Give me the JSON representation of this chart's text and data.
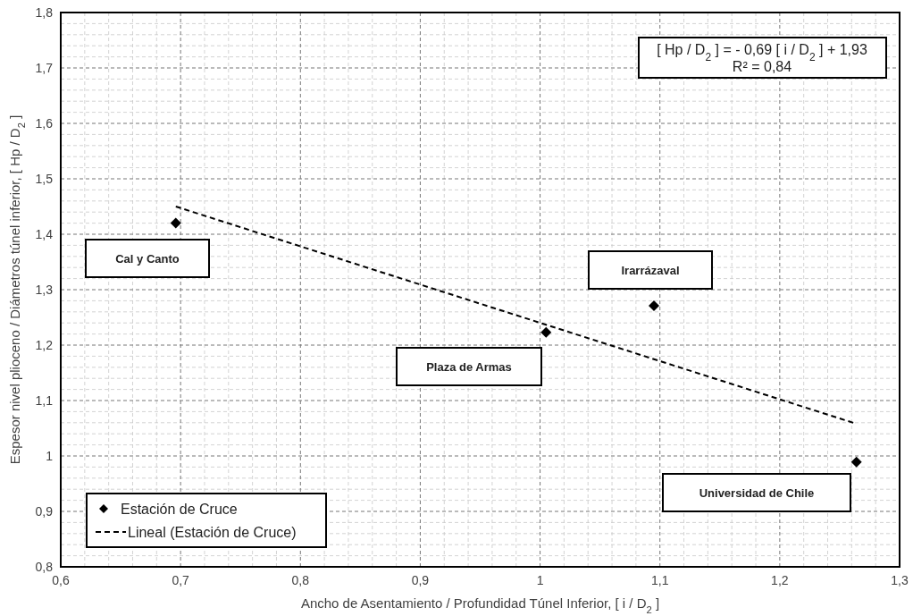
{
  "chart_data": {
    "type": "scatter",
    "xlabel": "Ancho de Asentamiento / Profundidad Túnel Inferior, [ i / D$_{2}$ ]",
    "ylabel": "Espesor nivel plioceno / Diámetros túnel inferior, [ Hp / D$_{2}$ ]",
    "x": [
      0.696,
      1.005,
      1.095,
      1.264
    ],
    "series": [
      {
        "name": "Estación de Cruce",
        "color": "#000000",
        "marker": "diamond",
        "values": [
          1.42,
          1.223,
          1.271,
          0.989
        ]
      },
      {
        "name": "Lineal (Estación de Cruce)",
        "type": "line",
        "color": "#000000",
        "line_style": "dashed",
        "marker": "none",
        "x": [
          0.696,
          1.264
        ],
        "values": [
          1.45,
          1.058
        ]
      }
    ],
    "xlim": [
      0.6,
      1.3
    ],
    "xticks": [
      {
        "value": 0.6,
        "label": "0,6"
      },
      {
        "value": 0.7,
        "label": "0,7"
      },
      {
        "value": 0.8,
        "label": "0,8"
      },
      {
        "value": 0.9,
        "label": "0,9"
      },
      1,
      {
        "value": 1.1,
        "label": "1,1"
      },
      {
        "value": 1.2,
        "label": "1,2"
      },
      {
        "value": 1.3,
        "label": "1,3"
      }
    ],
    "ylim": [
      0.8,
      1.8
    ],
    "yticks": [
      {
        "value": 0.8,
        "label": "0,8"
      },
      {
        "value": 0.9,
        "label": "0,9"
      },
      1,
      {
        "value": 1.1,
        "label": "1,1"
      },
      {
        "value": 1.2,
        "label": "1,2"
      },
      {
        "value": 1.3,
        "label": "1,3"
      },
      {
        "value": 1.4,
        "label": "1,4"
      },
      {
        "value": 1.5,
        "label": "1,5"
      },
      {
        "value": 1.6,
        "label": "1,6"
      },
      {
        "value": 1.7,
        "label": "1,7"
      },
      {
        "value": 1.8,
        "label": "1,8"
      }
    ],
    "grid": true,
    "legend": "bottom left",
    "annotations": [
      "[ Hp / D$_{2}$ ] = - 0,69 [ i / D$_{2}$ ] + 1,93",
      "R² = 0,84",
      "Cal y Canto",
      "Irarrázaval",
      "Plaza de Armas",
      "Universidad de Chile"
    ]
  }
}
